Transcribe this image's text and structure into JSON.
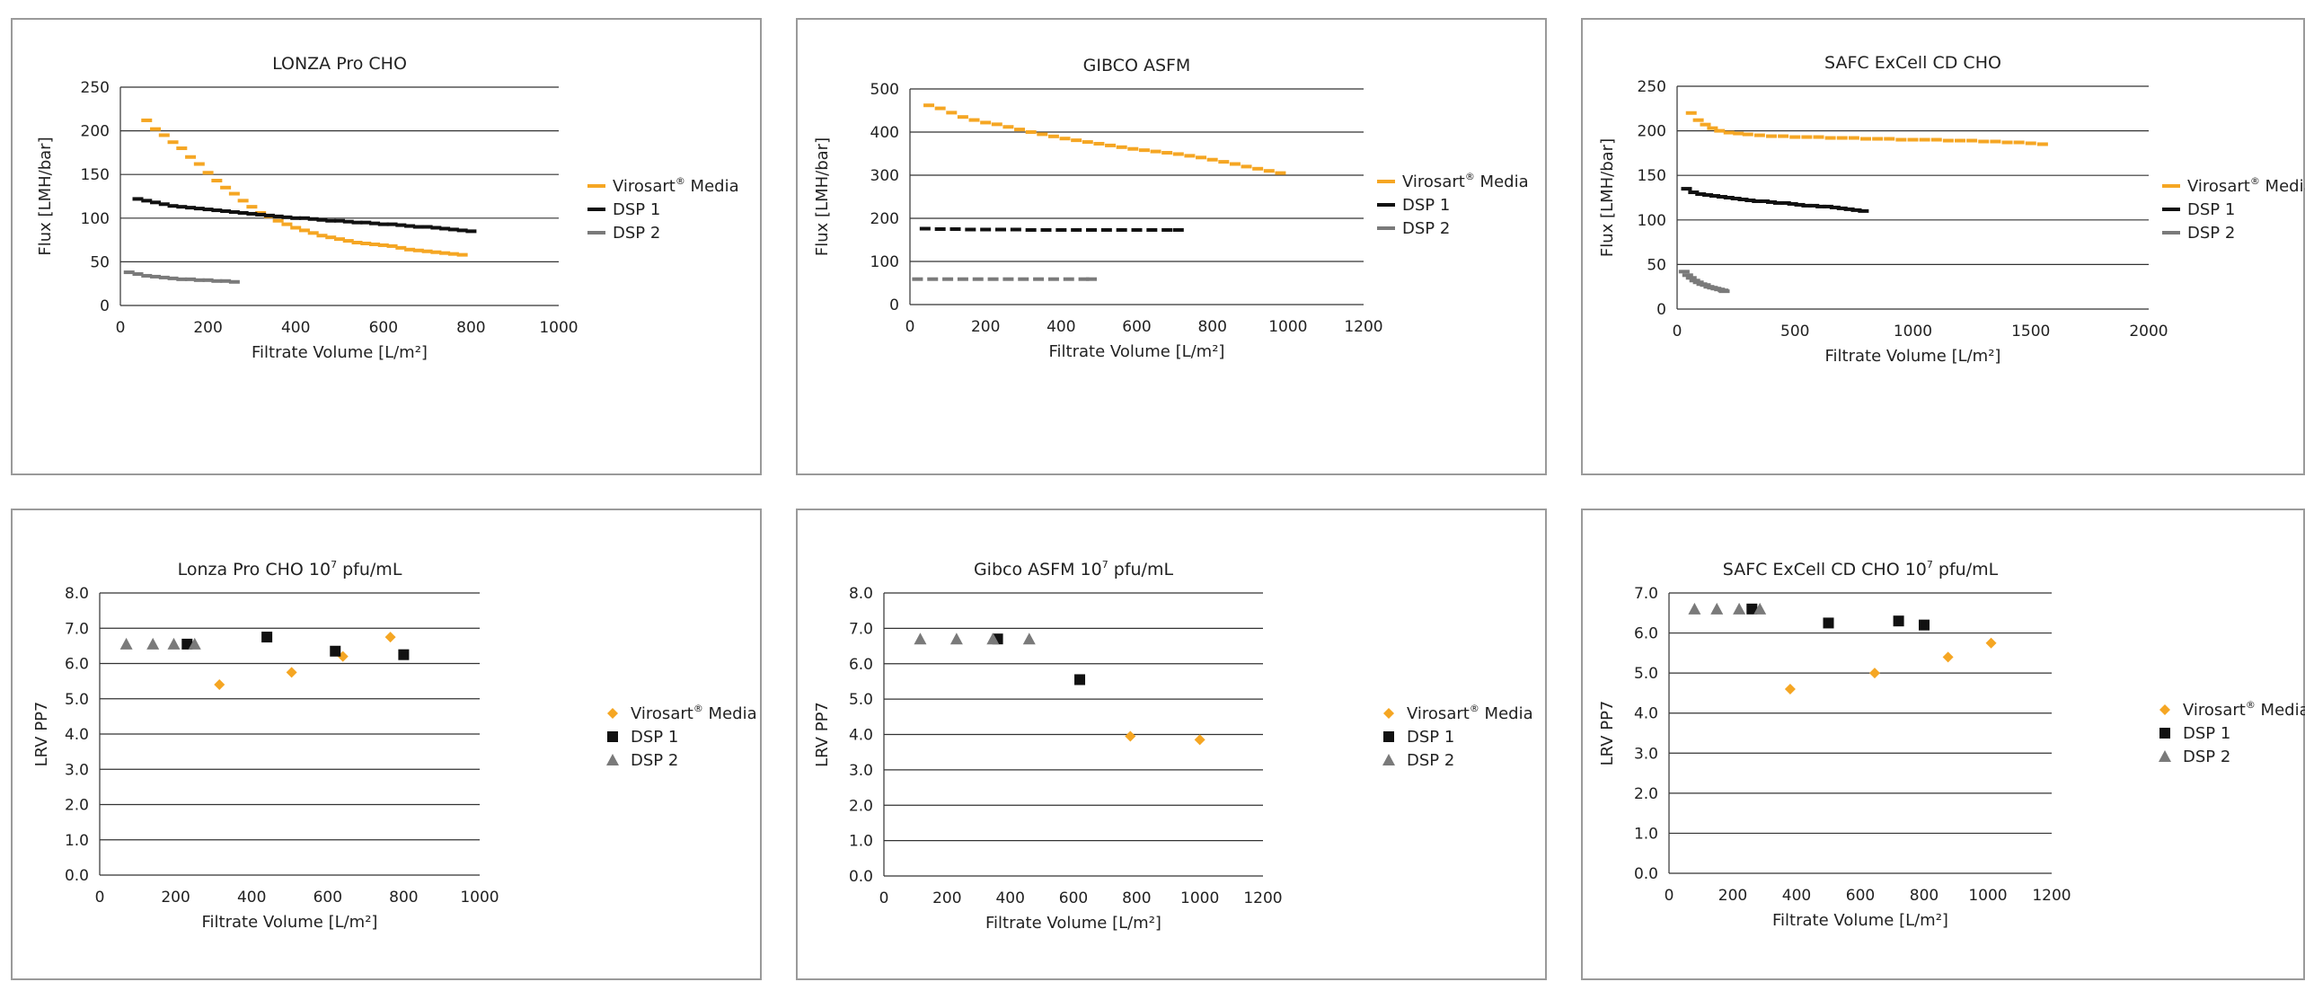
{
  "colors": {
    "virosart": "#F5A623",
    "dsp1": "#111111",
    "dsp2": "#7a7a7a",
    "grid": "#333333"
  },
  "chart_data": [
    {
      "id": "lonza-flux",
      "type": "scatter",
      "marker": "dash",
      "title": "LONZA Pro CHO",
      "xlabel": "Filtrate Volume [L/m²]",
      "ylabel": "Flux [LMH/bar]",
      "xlim": [
        0,
        1000
      ],
      "ylim": [
        0,
        250
      ],
      "xticks": [
        0,
        200,
        400,
        600,
        800,
        1000
      ],
      "yticks": [
        0,
        50,
        100,
        150,
        200,
        250
      ],
      "xtick_labels": [
        "0",
        "200",
        "400",
        "600",
        "800",
        "1000"
      ],
      "ytick_labels": [
        "0",
        "50",
        "100",
        "150",
        "200",
        "250"
      ],
      "grid": "horizontal",
      "series": [
        {
          "name": "Virosart® Media",
          "color_key": "virosart",
          "legend_main": "Virosart",
          "legend_sup": "®",
          "legend_rest": " Media",
          "x": [
            60,
            80,
            100,
            120,
            140,
            160,
            180,
            200,
            220,
            240,
            260,
            280,
            300,
            320,
            340,
            360,
            380,
            400,
            420,
            440,
            460,
            480,
            500,
            520,
            540,
            560,
            580,
            600,
            620,
            640,
            660,
            680,
            700,
            720,
            740,
            760,
            780
          ],
          "y": [
            212,
            202,
            195,
            187,
            180,
            170,
            162,
            152,
            143,
            135,
            128,
            120,
            113,
            106,
            102,
            97,
            93,
            89,
            86,
            83,
            80,
            78,
            76,
            74,
            72,
            71,
            70,
            69,
            68,
            66,
            64,
            63,
            62,
            61,
            60,
            59,
            58
          ]
        },
        {
          "name": "DSP 1",
          "color_key": "dsp1",
          "legend_main": "DSP 1",
          "x": [
            40,
            60,
            80,
            100,
            120,
            140,
            160,
            180,
            200,
            220,
            240,
            260,
            280,
            300,
            320,
            340,
            360,
            380,
            400,
            420,
            440,
            460,
            480,
            500,
            520,
            540,
            560,
            580,
            600,
            620,
            640,
            660,
            680,
            700,
            720,
            740,
            760,
            780,
            800
          ],
          "y": [
            122,
            120,
            118,
            116,
            114,
            113,
            112,
            111,
            110,
            109,
            108,
            107,
            106,
            105,
            104,
            103,
            102,
            101,
            100,
            100,
            99,
            98,
            97,
            97,
            96,
            95,
            95,
            94,
            93,
            93,
            92,
            91,
            90,
            90,
            89,
            88,
            87,
            86,
            85
          ]
        },
        {
          "name": "DSP 2",
          "color_key": "dsp2",
          "legend_main": "DSP 2",
          "x": [
            20,
            40,
            60,
            80,
            100,
            120,
            140,
            160,
            180,
            200,
            220,
            240,
            260
          ],
          "y": [
            38,
            36,
            34,
            33,
            32,
            31,
            30,
            30,
            29,
            29,
            28,
            28,
            27
          ]
        }
      ]
    },
    {
      "id": "gibco-flux",
      "type": "scatter",
      "marker": "dash",
      "title": "GIBCO ASFM",
      "xlabel": "Filtrate Volume [L/m²]",
      "ylabel": "Flux [LMH/bar]",
      "xlim": [
        0,
        1200
      ],
      "ylim": [
        0,
        500
      ],
      "xticks": [
        0,
        200,
        400,
        600,
        800,
        1000,
        1200
      ],
      "yticks": [
        0,
        100,
        200,
        300,
        400,
        500
      ],
      "xtick_labels": [
        "0",
        "200",
        "400",
        "600",
        "800",
        "1000",
        "1200"
      ],
      "ytick_labels": [
        "0",
        "100",
        "200",
        "300",
        "400",
        "500"
      ],
      "grid": "horizontal",
      "series": [
        {
          "name": "Virosart® Media",
          "color_key": "virosart",
          "legend_main": "Virosart",
          "legend_sup": "®",
          "legend_rest": " Media",
          "x": [
            50,
            80,
            110,
            140,
            170,
            200,
            230,
            260,
            290,
            320,
            350,
            380,
            410,
            440,
            470,
            500,
            530,
            560,
            590,
            620,
            650,
            680,
            710,
            740,
            770,
            800,
            830,
            860,
            890,
            920,
            950,
            980
          ],
          "y": [
            462,
            455,
            445,
            435,
            428,
            422,
            418,
            412,
            406,
            400,
            395,
            390,
            385,
            381,
            377,
            373,
            369,
            365,
            361,
            358,
            355,
            352,
            349,
            345,
            341,
            336,
            331,
            326,
            320,
            315,
            310,
            305
          ]
        },
        {
          "name": "DSP 1",
          "color_key": "dsp1",
          "legend_main": "DSP 1",
          "x": [
            40,
            80,
            120,
            160,
            200,
            240,
            280,
            320,
            360,
            400,
            440,
            480,
            520,
            560,
            600,
            640,
            680,
            710
          ],
          "y": [
            176,
            175,
            175,
            174,
            174,
            174,
            174,
            173,
            173,
            173,
            173,
            173,
            173,
            173,
            173,
            173,
            173,
            173
          ]
        },
        {
          "name": "DSP 2",
          "color_key": "dsp2",
          "legend_main": "DSP 2",
          "x": [
            20,
            60,
            100,
            140,
            180,
            220,
            260,
            300,
            340,
            380,
            420,
            460,
            480
          ],
          "y": [
            59,
            59,
            59,
            59,
            59,
            59,
            59,
            59,
            59,
            59,
            59,
            59,
            59
          ]
        }
      ]
    },
    {
      "id": "safc-flux",
      "type": "scatter",
      "marker": "dash",
      "title": "SAFC ExCell CD CHO",
      "xlabel": "Filtrate Volume [L/m²]",
      "ylabel": "Flux [LMH/bar]",
      "xlim": [
        0,
        2000
      ],
      "ylim": [
        0,
        250
      ],
      "xticks": [
        0,
        500,
        1000,
        1500,
        2000
      ],
      "yticks": [
        0,
        50,
        100,
        150,
        200,
        250
      ],
      "xtick_labels": [
        "0",
        "500",
        "1000",
        "1500",
        "2000"
      ],
      "ytick_labels": [
        "0",
        "50",
        "100",
        "150",
        "200",
        "250"
      ],
      "grid": "horizontal",
      "series": [
        {
          "name": "Virosart® Media",
          "color_key": "virosart",
          "legend_main": "Virosart",
          "legend_sup": "®",
          "legend_rest": " Media",
          "x": [
            60,
            90,
            120,
            150,
            180,
            220,
            260,
            300,
            350,
            400,
            450,
            500,
            550,
            600,
            650,
            700,
            750,
            800,
            850,
            900,
            950,
            1000,
            1050,
            1100,
            1150,
            1200,
            1250,
            1300,
            1350,
            1400,
            1450,
            1500,
            1550
          ],
          "y": [
            220,
            212,
            207,
            203,
            200,
            198,
            197,
            196,
            195,
            194,
            194,
            193,
            193,
            193,
            192,
            192,
            192,
            191,
            191,
            191,
            190,
            190,
            190,
            190,
            189,
            189,
            189,
            188,
            188,
            187,
            187,
            186,
            185
          ]
        },
        {
          "name": "DSP 1",
          "color_key": "dsp1",
          "legend_main": "DSP 1",
          "x": [
            40,
            70,
            100,
            130,
            160,
            190,
            220,
            250,
            280,
            310,
            340,
            370,
            400,
            430,
            460,
            490,
            520,
            550,
            580,
            610,
            640,
            670,
            700,
            730,
            760,
            790
          ],
          "y": [
            135,
            131,
            129,
            128,
            127,
            126,
            125,
            124,
            123,
            122,
            121,
            121,
            120,
            119,
            119,
            118,
            117,
            116,
            116,
            115,
            115,
            114,
            113,
            112,
            111,
            110
          ]
        },
        {
          "name": "DSP 2",
          "color_key": "dsp2",
          "legend_main": "DSP 2",
          "x": [
            30,
            45,
            60,
            75,
            90,
            105,
            120,
            135,
            150,
            165,
            180,
            195,
            200
          ],
          "y": [
            42,
            38,
            35,
            32,
            30,
            28,
            27,
            25,
            24,
            23,
            22,
            21,
            20
          ]
        }
      ]
    },
    {
      "id": "lonza-lrv",
      "type": "scatter",
      "marker": "symbols",
      "title_main": "Lonza Pro CHO 10",
      "title_sup": "7",
      "title_rest": " pfu/mL",
      "xlabel": "Filtrate Volume [L/m²]",
      "ylabel": "LRV PP7",
      "xlim": [
        0,
        1000
      ],
      "ylim": [
        0,
        8
      ],
      "xticks": [
        0,
        200,
        400,
        600,
        800,
        1000
      ],
      "yticks": [
        0,
        1,
        2,
        3,
        4,
        5,
        6,
        7,
        8
      ],
      "xtick_labels": [
        "0",
        "200",
        "400",
        "600",
        "800",
        "1000"
      ],
      "ytick_labels": [
        "0.0",
        "1.0",
        "2.0",
        "3.0",
        "4.0",
        "5.0",
        "6.0",
        "7.0",
        "8.0"
      ],
      "grid": "horizontal",
      "series": [
        {
          "name": "Virosart® Media",
          "color_key": "virosart",
          "shape": "diamond",
          "legend_main": "Virosart",
          "legend_sup": "®",
          "legend_rest": " Media",
          "x": [
            315,
            505,
            640,
            765
          ],
          "y": [
            5.4,
            5.75,
            6.2,
            6.75
          ]
        },
        {
          "name": "DSP 1",
          "color_key": "dsp1",
          "shape": "square",
          "legend_main": "DSP 1",
          "x": [
            230,
            440,
            620,
            800
          ],
          "y": [
            6.55,
            6.75,
            6.35,
            6.25
          ]
        },
        {
          "name": "DSP 2",
          "color_key": "dsp2",
          "shape": "triangle",
          "legend_main": "DSP 2",
          "x": [
            70,
            140,
            195,
            250
          ],
          "y": [
            6.55,
            6.55,
            6.55,
            6.55
          ]
        }
      ]
    },
    {
      "id": "gibco-lrv",
      "type": "scatter",
      "marker": "symbols",
      "title_main": "Gibco ASFM 10",
      "title_sup": "7",
      "title_rest": " pfu/mL",
      "xlabel": "Filtrate Volume [L/m²]",
      "ylabel": "LRV PP7",
      "xlim": [
        0,
        1200
      ],
      "ylim": [
        0,
        8
      ],
      "xticks": [
        0,
        200,
        400,
        600,
        800,
        1000,
        1200
      ],
      "yticks": [
        0,
        1,
        2,
        3,
        4,
        5,
        6,
        7,
        8
      ],
      "xtick_labels": [
        "0",
        "200",
        "400",
        "600",
        "800",
        "1000",
        "1200"
      ],
      "ytick_labels": [
        "0.0",
        "1.0",
        "2.0",
        "3.0",
        "4.0",
        "5.0",
        "6.0",
        "7.0",
        "8.0"
      ],
      "grid": "horizontal",
      "series": [
        {
          "name": "Virosart® Media",
          "color_key": "virosart",
          "shape": "diamond",
          "legend_main": "Virosart",
          "legend_sup": "®",
          "legend_rest": " Media",
          "x": [
            780,
            1000
          ],
          "y": [
            3.95,
            3.85
          ]
        },
        {
          "name": "DSP 1",
          "color_key": "dsp1",
          "shape": "square",
          "legend_main": "DSP 1",
          "x": [
            360,
            620
          ],
          "y": [
            6.7,
            5.55
          ]
        },
        {
          "name": "DSP 2",
          "color_key": "dsp2",
          "shape": "triangle",
          "legend_main": "DSP 2",
          "x": [
            115,
            230,
            345,
            460
          ],
          "y": [
            6.7,
            6.7,
            6.7,
            6.7
          ]
        }
      ]
    },
    {
      "id": "safc-lrv",
      "type": "scatter",
      "marker": "symbols",
      "title_main": "SAFC ExCell CD CHO 10",
      "title_sup": "7",
      "title_rest": " pfu/mL",
      "xlabel": "Filtrate Volume [L/m²]",
      "ylabel": "LRV PP7",
      "xlim": [
        0,
        1200
      ],
      "ylim": [
        0,
        7
      ],
      "xticks": [
        0,
        200,
        400,
        600,
        800,
        1000,
        1200
      ],
      "yticks": [
        0,
        1,
        2,
        3,
        4,
        5,
        6,
        7
      ],
      "xtick_labels": [
        "0",
        "200",
        "400",
        "600",
        "800",
        "1000",
        "1200"
      ],
      "ytick_labels": [
        "0.0",
        "1.0",
        "2.0",
        "3.0",
        "4.0",
        "5.0",
        "6.0",
        "7.0"
      ],
      "grid": "horizontal",
      "series": [
        {
          "name": "Virosart® Media",
          "color_key": "virosart",
          "shape": "diamond",
          "legend_main": "Virosart",
          "legend_sup": "®",
          "legend_rest": " Media",
          "x": [
            380,
            645,
            875,
            1010
          ],
          "y": [
            4.6,
            5.0,
            5.4,
            5.75
          ]
        },
        {
          "name": "DSP 1",
          "color_key": "dsp1",
          "shape": "square",
          "legend_main": "DSP 1",
          "x": [
            260,
            500,
            720,
            800
          ],
          "y": [
            6.6,
            6.25,
            6.3,
            6.2
          ]
        },
        {
          "name": "DSP 2",
          "color_key": "dsp2",
          "shape": "triangle",
          "legend_main": "DSP 2",
          "x": [
            80,
            150,
            220,
            285
          ],
          "y": [
            6.6,
            6.6,
            6.6,
            6.6
          ]
        }
      ]
    }
  ]
}
